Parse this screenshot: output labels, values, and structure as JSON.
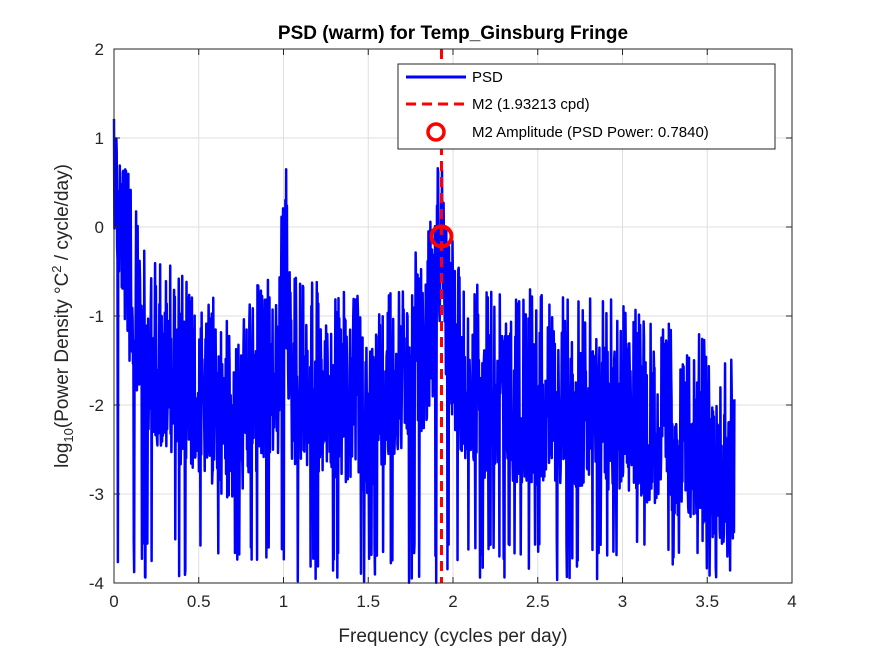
{
  "chart_data": {
    "type": "line",
    "title": "PSD (warm) for Temp_Ginsburg Fringe",
    "xlabel": "Frequency (cycles per day)",
    "ylabel": {
      "prefix": "log",
      "sub": "10",
      "middle": "(Power Density °C",
      "sup": "2",
      "suffix": " / cycle/day)"
    },
    "xlim": [
      0,
      4
    ],
    "ylim": [
      -4,
      2
    ],
    "xticks": [
      0,
      0.5,
      1,
      1.5,
      2,
      2.5,
      3,
      3.5,
      4
    ],
    "xtick_labels": [
      "0",
      "0.5",
      "1",
      "1.5",
      "2",
      "2.5",
      "3",
      "3.5",
      "4"
    ],
    "yticks": [
      -4,
      -3,
      -2,
      -1,
      0,
      1,
      2
    ],
    "ytick_labels": [
      "-4",
      "-3",
      "-2",
      "-1",
      "0",
      "1",
      "2"
    ],
    "grid": true,
    "legend_position": "top-right",
    "series": [
      {
        "name": "PSD",
        "style": "solid",
        "color": "#0000ff",
        "x_range": [
          0,
          3.66
        ],
        "envelope_points": [
          [
            0.0,
            1.95
          ],
          [
            0.02,
            1.3
          ],
          [
            0.04,
            1.1
          ],
          [
            0.06,
            0.85
          ],
          [
            0.08,
            0.5
          ],
          [
            0.1,
            0.2
          ],
          [
            0.15,
            0.0
          ],
          [
            0.2,
            -0.4
          ],
          [
            0.3,
            -0.7
          ],
          [
            0.5,
            -0.9
          ],
          [
            0.7,
            -1.2
          ],
          [
            0.97,
            -0.7
          ],
          [
            1.01,
            0.58
          ],
          [
            1.05,
            -0.8
          ],
          [
            1.5,
            -1.1
          ],
          [
            1.75,
            -0.6
          ],
          [
            1.85,
            -0.3
          ],
          [
            1.9,
            0.1
          ],
          [
            1.932,
            1.05
          ],
          [
            1.96,
            0.1
          ],
          [
            2.0,
            -0.5
          ],
          [
            2.1,
            -0.9
          ],
          [
            2.5,
            -1.0
          ],
          [
            3.0,
            -1.1
          ],
          [
            3.4,
            -1.4
          ],
          [
            3.66,
            -1.8
          ]
        ],
        "floor": -4
      },
      {
        "name": "M2 (1.93213 cpd)",
        "style": "dashed",
        "color": "#ff0000",
        "x": 1.93213
      },
      {
        "name": "M2 Amplitude (PSD Power: 0.7840)",
        "style": "marker-circle",
        "color": "#ff0000",
        "x": 1.93213,
        "y": -0.1057
      }
    ]
  }
}
